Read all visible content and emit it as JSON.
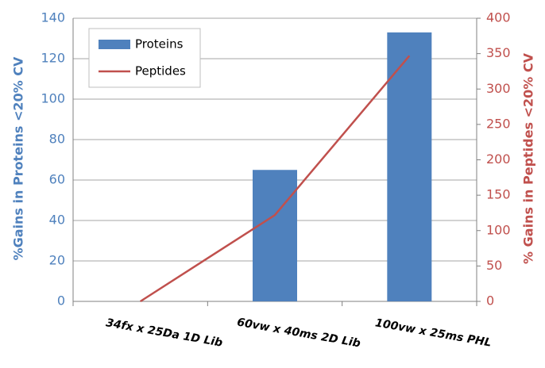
{
  "chart_data": {
    "type": "combo",
    "categories": [
      "34fx x 25Da 1D Lib",
      "60vw x 40ms 2D Lib",
      "100vw x 25ms PHL"
    ],
    "y_label": "%Gains in Proteins <20% CV",
    "y2_label": "% Gains in Peptides <20% CV",
    "ylim": [
      0,
      140
    ],
    "yticks": [
      0,
      20,
      40,
      60,
      80,
      100,
      120,
      140
    ],
    "y2lim": [
      0,
      400
    ],
    "y2ticks": [
      0,
      50,
      100,
      150,
      200,
      250,
      300,
      350,
      400
    ],
    "grid": true,
    "legend": "upper-left",
    "series": [
      {
        "name": "Proteins",
        "type": "bar",
        "color": "#4f81bd",
        "values": [
          0,
          65,
          133
        ]
      },
      {
        "name": "Peptides",
        "type": "line",
        "axis": "y2",
        "color": "#c0504d",
        "values": [
          0,
          122,
          347
        ]
      }
    ]
  }
}
